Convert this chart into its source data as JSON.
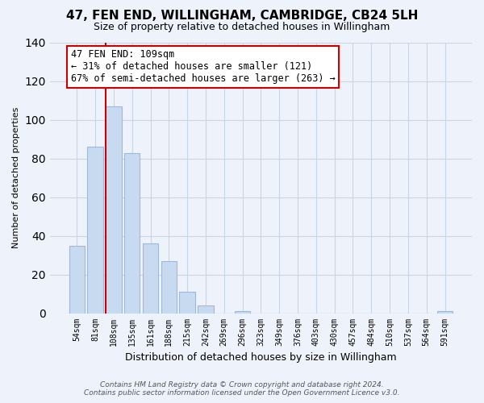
{
  "title": "47, FEN END, WILLINGHAM, CAMBRIDGE, CB24 5LH",
  "subtitle": "Size of property relative to detached houses in Willingham",
  "xlabel": "Distribution of detached houses by size in Willingham",
  "ylabel": "Number of detached properties",
  "bar_labels": [
    "54sqm",
    "81sqm",
    "108sqm",
    "135sqm",
    "161sqm",
    "188sqm",
    "215sqm",
    "242sqm",
    "269sqm",
    "296sqm",
    "323sqm",
    "349sqm",
    "376sqm",
    "403sqm",
    "430sqm",
    "457sqm",
    "484sqm",
    "510sqm",
    "537sqm",
    "564sqm",
    "591sqm"
  ],
  "bar_values": [
    35,
    86,
    107,
    83,
    36,
    27,
    11,
    4,
    0,
    1,
    0,
    0,
    0,
    0,
    0,
    0,
    0,
    0,
    0,
    0,
    1
  ],
  "bar_color": "#c8daf0",
  "bar_edge_color": "#a0b8d8",
  "highlight_line_color": "#cc0000",
  "highlight_bar_index": 2,
  "annotation_title": "47 FEN END: 109sqm",
  "annotation_line1": "← 31% of detached houses are smaller (121)",
  "annotation_line2": "67% of semi-detached houses are larger (263) →",
  "annotation_box_color": "#ffffff",
  "annotation_box_edge_color": "#cc0000",
  "ylim": [
    0,
    140
  ],
  "yticks": [
    0,
    20,
    40,
    60,
    80,
    100,
    120,
    140
  ],
  "footer_line1": "Contains HM Land Registry data © Crown copyright and database right 2024.",
  "footer_line2": "Contains public sector information licensed under the Open Government Licence v3.0.",
  "bg_color": "#eef2fa",
  "plot_bg_color": "#eef2fa",
  "grid_color": "#c8d4e8"
}
